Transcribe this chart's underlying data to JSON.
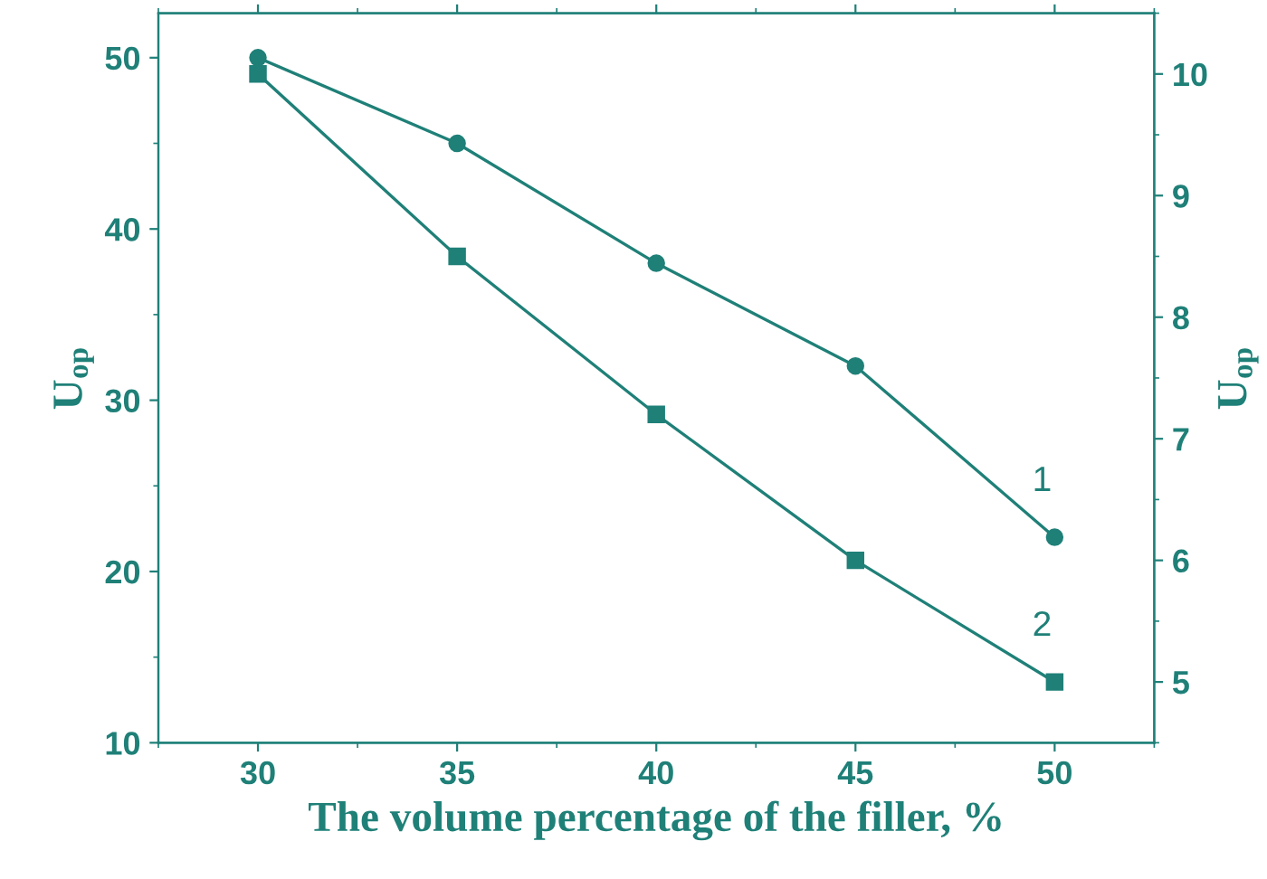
{
  "chart_data": {
    "type": "line",
    "xlabel": "The volume percentage of the filler, %",
    "ylabel": "U$_{op}$",
    "y2label": "U$_{op}$",
    "x": [
      30,
      35,
      40,
      45,
      50
    ],
    "series": [
      {
        "color": "#1f8078",
        "marker": "circle",
        "values": [
          50,
          45,
          38,
          32,
          22
        ]
      },
      {
        "color": "#1f8078",
        "marker": "square",
        "axis": "y2",
        "values": [
          10,
          8.5,
          7.2,
          6.0,
          5.0
        ]
      }
    ],
    "annotations": [
      "1",
      "2"
    ],
    "xlim": [
      27.5,
      52.5
    ],
    "xticks": [
      30,
      35,
      40,
      45,
      50
    ],
    "ylim": [
      10,
      52.6
    ],
    "yticks": [
      10,
      20,
      30,
      40,
      50
    ],
    "y2lim": [
      4.5,
      10.5
    ],
    "y2ticks": [
      5,
      6,
      7,
      8,
      9,
      10
    ],
    "grid": false,
    "legend": false,
    "line_style": "solid"
  }
}
